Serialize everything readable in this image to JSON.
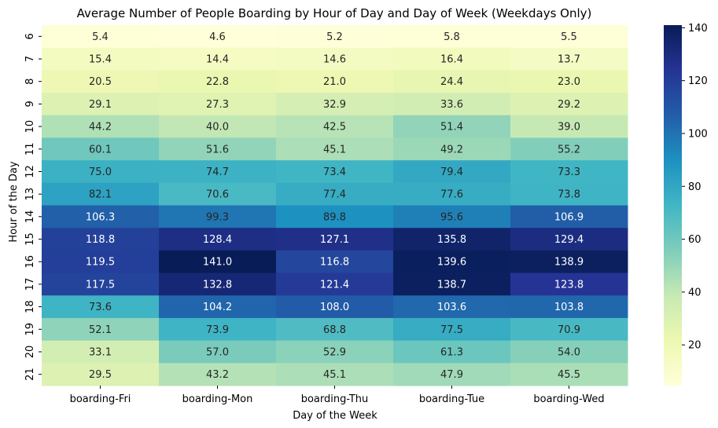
{
  "chart_data": {
    "type": "heatmap",
    "title": "Average Number of People Boarding by Hour of Day and Day of Week (Weekdays Only)",
    "xlabel": "Day of the Week",
    "ylabel": "Hour of the Day",
    "x_categories": [
      "boarding-Fri",
      "boarding-Mon",
      "boarding-Thu",
      "boarding-Tue",
      "boarding-Wed"
    ],
    "y_categories": [
      "6",
      "7",
      "8",
      "9",
      "10",
      "11",
      "12",
      "13",
      "14",
      "15",
      "16",
      "17",
      "18",
      "19",
      "20",
      "21"
    ],
    "values": [
      [
        5.4,
        4.6,
        5.2,
        5.8,
        5.5
      ],
      [
        15.4,
        14.4,
        14.6,
        16.4,
        13.7
      ],
      [
        20.5,
        22.8,
        21.0,
        24.4,
        23.0
      ],
      [
        29.1,
        27.3,
        32.9,
        33.6,
        29.2
      ],
      [
        44.2,
        40.0,
        42.5,
        51.4,
        39.0
      ],
      [
        60.1,
        51.6,
        45.1,
        49.2,
        55.2
      ],
      [
        75.0,
        74.7,
        73.4,
        79.4,
        73.3
      ],
      [
        82.1,
        70.6,
        77.4,
        77.6,
        73.8
      ],
      [
        106.3,
        99.3,
        89.8,
        95.6,
        106.9
      ],
      [
        118.8,
        128.4,
        127.1,
        135.8,
        129.4
      ],
      [
        119.5,
        141.0,
        116.8,
        139.6,
        138.9
      ],
      [
        117.5,
        132.8,
        121.4,
        138.7,
        123.8
      ],
      [
        73.6,
        104.2,
        108.0,
        103.6,
        103.8
      ],
      [
        52.1,
        73.9,
        68.8,
        77.5,
        70.9
      ],
      [
        33.1,
        57.0,
        52.9,
        61.3,
        54.0
      ],
      [
        29.5,
        43.2,
        45.1,
        47.9,
        45.5
      ]
    ],
    "value_range": [
      4.6,
      141.0
    ],
    "colormap": "YlGnBu",
    "colorbar_ticks": [
      "20",
      "40",
      "60",
      "80",
      "100",
      "120",
      "140"
    ],
    "annotation_threshold": 100
  }
}
